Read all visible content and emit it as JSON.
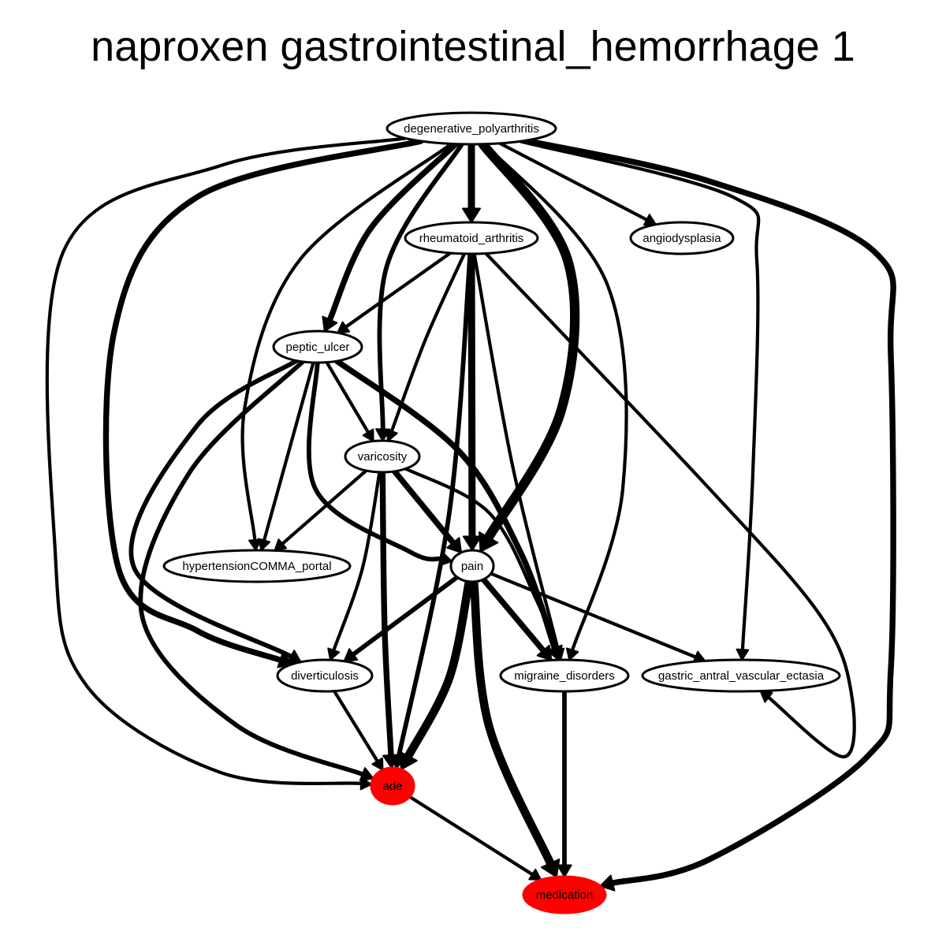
{
  "title": "naproxen gastrointestinal_hemorrhage 1",
  "colors": {
    "default_node_fill": "#ffffff",
    "highlight_node_fill": "#ff0000",
    "stroke": "#000000"
  },
  "nodes": [
    {
      "id": "degenerative_polyarthritis",
      "label": "degenerative_polyarthritis",
      "highlight": false
    },
    {
      "id": "rheumatoid_arthritis",
      "label": "rheumatoid_arthritis",
      "highlight": false
    },
    {
      "id": "angiodysplasia",
      "label": "angiodysplasia",
      "highlight": false
    },
    {
      "id": "peptic_ulcer",
      "label": "peptic_ulcer",
      "highlight": false
    },
    {
      "id": "varicosity",
      "label": "varicosity",
      "highlight": false
    },
    {
      "id": "hypertensionCOMMA_portal",
      "label": "hypertensionCOMMA_portal",
      "highlight": false
    },
    {
      "id": "pain",
      "label": "pain",
      "highlight": false
    },
    {
      "id": "diverticulosis",
      "label": "diverticulosis",
      "highlight": false
    },
    {
      "id": "migraine_disorders",
      "label": "migraine_disorders",
      "highlight": false
    },
    {
      "id": "gastric_antral_vascular_ectasia",
      "label": "gastric_antral_vascular_ectasia",
      "highlight": false
    },
    {
      "id": "ade",
      "label": "ade",
      "highlight": true
    },
    {
      "id": "medication",
      "label": "medication",
      "highlight": true
    }
  ],
  "edges": [
    {
      "from": "degenerative_polyarthritis",
      "to": "rheumatoid_arthritis",
      "weight": 5
    },
    {
      "from": "degenerative_polyarthritis",
      "to": "angiodysplasia",
      "weight": 2
    },
    {
      "from": "degenerative_polyarthritis",
      "to": "peptic_ulcer",
      "weight": 4
    },
    {
      "from": "degenerative_polyarthritis",
      "to": "varicosity",
      "weight": 3
    },
    {
      "from": "degenerative_polyarthritis",
      "to": "hypertensionCOMMA_portal",
      "weight": 2
    },
    {
      "from": "degenerative_polyarthritis",
      "to": "pain",
      "weight": 7
    },
    {
      "from": "degenerative_polyarthritis",
      "to": "diverticulosis",
      "weight": 4
    },
    {
      "from": "degenerative_polyarthritis",
      "to": "migraine_disorders",
      "weight": 2
    },
    {
      "from": "degenerative_polyarthritis",
      "to": "gastric_antral_vascular_ectasia",
      "weight": 2
    },
    {
      "from": "degenerative_polyarthritis",
      "to": "ade",
      "weight": 2
    },
    {
      "from": "degenerative_polyarthritis",
      "to": "medication",
      "weight": 4
    },
    {
      "from": "rheumatoid_arthritis",
      "to": "peptic_ulcer",
      "weight": 2
    },
    {
      "from": "rheumatoid_arthritis",
      "to": "varicosity",
      "weight": 2
    },
    {
      "from": "rheumatoid_arthritis",
      "to": "pain",
      "weight": 5
    },
    {
      "from": "rheumatoid_arthritis",
      "to": "ade",
      "weight": 3
    },
    {
      "from": "rheumatoid_arthritis",
      "to": "migraine_disorders",
      "weight": 2
    },
    {
      "from": "rheumatoid_arthritis",
      "to": "gastric_antral_vascular_ectasia",
      "weight": 2
    },
    {
      "from": "peptic_ulcer",
      "to": "varicosity",
      "weight": 2
    },
    {
      "from": "peptic_ulcer",
      "to": "hypertensionCOMMA_portal",
      "weight": 2
    },
    {
      "from": "peptic_ulcer",
      "to": "pain",
      "weight": 3
    },
    {
      "from": "peptic_ulcer",
      "to": "diverticulosis",
      "weight": 3
    },
    {
      "from": "peptic_ulcer",
      "to": "migraine_disorders",
      "weight": 4
    },
    {
      "from": "peptic_ulcer",
      "to": "ade",
      "weight": 3
    },
    {
      "from": "varicosity",
      "to": "hypertensionCOMMA_portal",
      "weight": 2
    },
    {
      "from": "varicosity",
      "to": "pain",
      "weight": 4
    },
    {
      "from": "varicosity",
      "to": "diverticulosis",
      "weight": 2
    },
    {
      "from": "varicosity",
      "to": "ade",
      "weight": 4
    },
    {
      "from": "varicosity",
      "to": "migraine_disorders",
      "weight": 2
    },
    {
      "from": "pain",
      "to": "diverticulosis",
      "weight": 3
    },
    {
      "from": "pain",
      "to": "migraine_disorders",
      "weight": 4
    },
    {
      "from": "pain",
      "to": "gastric_antral_vascular_ectasia",
      "weight": 2
    },
    {
      "from": "pain",
      "to": "ade",
      "weight": 6
    },
    {
      "from": "pain",
      "to": "medication",
      "weight": 6
    },
    {
      "from": "diverticulosis",
      "to": "ade",
      "weight": 2
    },
    {
      "from": "migraine_disorders",
      "to": "medication",
      "weight": 3
    },
    {
      "from": "ade",
      "to": "medication",
      "weight": 2
    }
  ]
}
